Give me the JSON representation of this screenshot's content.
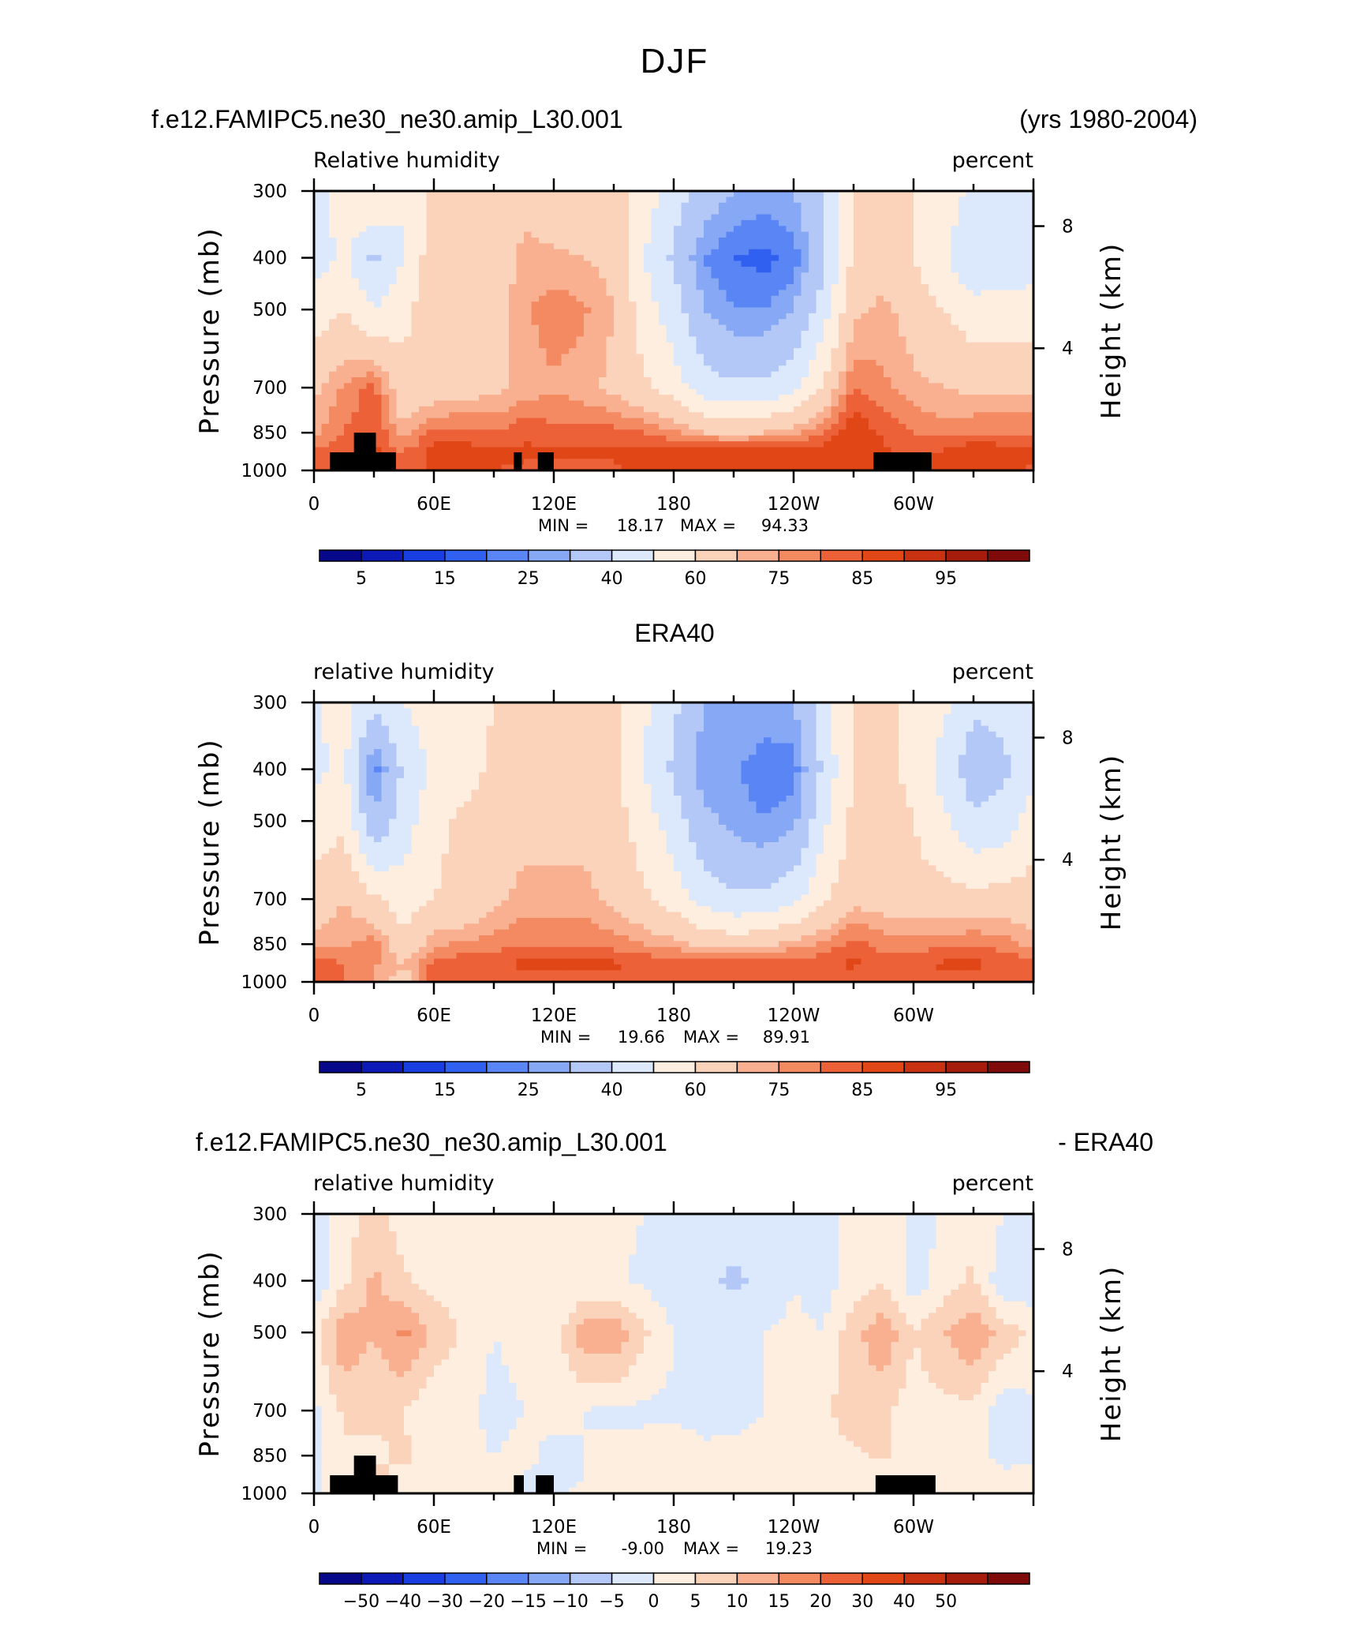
{
  "figure": {
    "title": "DJF",
    "colors": {
      "rh_scale": [
        "#08088a",
        "#0d1ab7",
        "#1a3fe0",
        "#3060f0",
        "#5a86f5",
        "#86a8f5",
        "#b4c8f8",
        "#dce8fb",
        "#fdeee0",
        "#fbd2ba",
        "#f8b090",
        "#f48a62",
        "#ec6138",
        "#e04616",
        "#c83210",
        "#a31c0c",
        "#7e0a0a"
      ],
      "diff_scale": [
        "#08088a",
        "#0d1ab7",
        "#1a3fe0",
        "#3060f0",
        "#5a86f5",
        "#86a8f5",
        "#b4c8f8",
        "#dce8fb",
        "#fdeee0",
        "#fbd2ba",
        "#f8b090",
        "#f48a62",
        "#ec6138",
        "#e04616",
        "#c83210",
        "#a31c0c",
        "#7e0a0a"
      ]
    }
  },
  "chart_data": [
    {
      "type": "heatmap",
      "title": "f.e12.FAMIPC5.ne30_ne30.amip_L30.001",
      "title_right": "(yrs 1980-2004)",
      "variable": "Relative humidity",
      "units": "percent",
      "ylabel": "Pressure (mb)",
      "ylabel_right": "Height (km)",
      "x_ticks": [
        "0",
        "60E",
        "120E",
        "180",
        "120W",
        "60W"
      ],
      "y_ticks": [
        "300",
        "400",
        "500",
        "700",
        "850",
        "1000"
      ],
      "y_right_ticks": [
        "8",
        "4"
      ],
      "stats": {
        "min_label": "MIN =",
        "min": "18.17",
        "max_label": "MAX =",
        "max": "94.33"
      },
      "colorbar_labels": [
        "5",
        "15",
        "25",
        "40",
        "60",
        "75",
        "85",
        "95"
      ],
      "colorbar_levels": [
        0,
        5,
        10,
        15,
        20,
        25,
        30,
        40,
        50,
        60,
        70,
        75,
        80,
        85,
        90,
        95,
        100
      ],
      "field": {
        "lon_points": [
          0,
          15,
          30,
          45,
          60,
          75,
          90,
          105,
          120,
          135,
          150,
          165,
          180,
          195,
          210,
          225,
          240,
          255,
          270,
          285,
          300,
          315,
          330,
          345,
          360
        ],
        "p_levels": [
          300,
          400,
          500,
          700,
          850,
          925,
          1000
        ],
        "values": [
          [
            45,
            55,
            60,
            50,
            65,
            65,
            62,
            68,
            62,
            60,
            65,
            55,
            45,
            35,
            30,
            28,
            30,
            38,
            62,
            65,
            60,
            55,
            48,
            45,
            45
          ],
          [
            45,
            52,
            38,
            50,
            66,
            65,
            64,
            72,
            72,
            70,
            68,
            50,
            38,
            25,
            20,
            18,
            22,
            38,
            62,
            66,
            60,
            52,
            40,
            42,
            45
          ],
          [
            55,
            60,
            50,
            58,
            65,
            65,
            66,
            74,
            78,
            76,
            70,
            55,
            45,
            30,
            25,
            25,
            30,
            45,
            68,
            72,
            66,
            60,
            55,
            55,
            55
          ],
          [
            68,
            76,
            82,
            62,
            64,
            66,
            68,
            72,
            74,
            72,
            68,
            62,
            55,
            45,
            42,
            42,
            48,
            62,
            80,
            76,
            72,
            70,
            68,
            68,
            68
          ],
          [
            74,
            80,
            85,
            72,
            82,
            82,
            80,
            84,
            82,
            82,
            82,
            80,
            76,
            70,
            68,
            70,
            74,
            80,
            90,
            84,
            80,
            78,
            80,
            80,
            80
          ],
          [
            82,
            84,
            86,
            80,
            88,
            88,
            86,
            86,
            86,
            86,
            86,
            88,
            88,
            90,
            90,
            90,
            90,
            88,
            90,
            86,
            84,
            86,
            90,
            88,
            86
          ],
          [
            84,
            85,
            84,
            82,
            86,
            86,
            85,
            84,
            84,
            84,
            84,
            86,
            86,
            88,
            88,
            88,
            87,
            86,
            86,
            84,
            84,
            86,
            88,
            86,
            84
          ]
        ]
      },
      "terrain": [
        {
          "lon0": 8,
          "lon1": 27,
          "p_top": 925
        },
        {
          "lon0": 20,
          "lon1": 31,
          "p_top": 850
        },
        {
          "lon0": 27,
          "lon1": 41,
          "p_top": 925
        },
        {
          "lon0": 100,
          "lon1": 104,
          "p_top": 925
        },
        {
          "lon0": 112,
          "lon1": 120,
          "p_top": 925
        },
        {
          "lon0": 280,
          "lon1": 309,
          "p_top": 925
        }
      ]
    },
    {
      "type": "heatmap",
      "title": "ERA40",
      "variable": "relative humidity",
      "units": "percent",
      "ylabel": "Pressure (mb)",
      "ylabel_right": "Height (km)",
      "x_ticks": [
        "0",
        "60E",
        "120E",
        "180",
        "120W",
        "60W"
      ],
      "y_ticks": [
        "300",
        "400",
        "500",
        "700",
        "850",
        "1000"
      ],
      "y_right_ticks": [
        "8",
        "4"
      ],
      "stats": {
        "min_label": "MIN =",
        "min": "19.66",
        "max_label": "MAX =",
        "max": "89.91"
      },
      "colorbar_labels": [
        "5",
        "15",
        "25",
        "40",
        "60",
        "75",
        "85",
        "95"
      ],
      "colorbar_levels": [
        0,
        5,
        10,
        15,
        20,
        25,
        30,
        40,
        50,
        60,
        70,
        75,
        80,
        85,
        90,
        95,
        100
      ],
      "field": {
        "lon_points": [
          0,
          15,
          30,
          45,
          60,
          75,
          90,
          105,
          120,
          135,
          150,
          165,
          180,
          195,
          210,
          225,
          240,
          255,
          270,
          285,
          300,
          315,
          330,
          345,
          360
        ],
        "p_levels": [
          300,
          400,
          500,
          700,
          850,
          925,
          1000
        ],
        "values": [
          [
            48,
            55,
            42,
            50,
            55,
            56,
            60,
            62,
            62,
            60,
            62,
            52,
            42,
            30,
            30,
            28,
            30,
            45,
            62,
            62,
            58,
            52,
            42,
            42,
            48
          ],
          [
            48,
            52,
            22,
            42,
            52,
            56,
            62,
            62,
            62,
            62,
            62,
            50,
            38,
            26,
            26,
            22,
            22,
            42,
            62,
            62,
            58,
            46,
            34,
            38,
            48
          ],
          [
            55,
            58,
            32,
            45,
            58,
            62,
            66,
            68,
            68,
            68,
            65,
            55,
            45,
            32,
            28,
            25,
            28,
            48,
            62,
            64,
            60,
            52,
            42,
            45,
            55
          ],
          [
            65,
            70,
            62,
            55,
            60,
            62,
            68,
            72,
            72,
            72,
            68,
            62,
            56,
            46,
            42,
            42,
            48,
            58,
            68,
            66,
            64,
            64,
            64,
            64,
            65
          ],
          [
            72,
            74,
            78,
            62,
            74,
            76,
            78,
            80,
            80,
            80,
            78,
            75,
            72,
            68,
            66,
            68,
            72,
            76,
            82,
            78,
            78,
            78,
            80,
            78,
            72
          ],
          [
            84,
            80,
            76,
            70,
            82,
            84,
            84,
            86,
            86,
            86,
            86,
            84,
            84,
            84,
            84,
            84,
            84,
            84,
            86,
            82,
            84,
            86,
            86,
            84,
            84
          ],
          [
            82,
            80,
            74,
            66,
            82,
            82,
            82,
            82,
            82,
            82,
            82,
            82,
            82,
            82,
            82,
            82,
            82,
            82,
            82,
            80,
            82,
            82,
            82,
            82,
            82
          ]
        ]
      },
      "terrain": []
    },
    {
      "type": "heatmap",
      "title": "f.e12.FAMIPC5.ne30_ne30.amip_L30.001",
      "title_right": "- ERA40",
      "variable": "relative humidity",
      "units": "percent",
      "ylabel": "Pressure (mb)",
      "ylabel_right": "Height (km)",
      "x_ticks": [
        "0",
        "60E",
        "120E",
        "180",
        "120W",
        "60W"
      ],
      "y_ticks": [
        "300",
        "400",
        "500",
        "700",
        "850",
        "1000"
      ],
      "y_right_ticks": [
        "8",
        "4"
      ],
      "stats": {
        "min_label": "MIN =",
        "min": "-9.00",
        "max_label": "MAX =",
        "max": "19.23"
      },
      "colorbar_labels": [
        "−50",
        "−40",
        "−30",
        "−20",
        "−15",
        "−10",
        "−5",
        "0",
        "5",
        "10",
        "15",
        "20",
        "30",
        "40",
        "50"
      ],
      "colorbar_levels": [
        -60,
        -50,
        -40,
        -30,
        -20,
        -15,
        -10,
        -5,
        0,
        5,
        10,
        15,
        20,
        30,
        40,
        50,
        60
      ],
      "field": {
        "lon_points": [
          0,
          15,
          30,
          45,
          60,
          75,
          90,
          105,
          120,
          135,
          150,
          165,
          180,
          195,
          210,
          225,
          240,
          255,
          270,
          285,
          300,
          315,
          330,
          345,
          360
        ],
        "p_levels": [
          300,
          400,
          500,
          700,
          850,
          925,
          1000
        ],
        "values": [
          [
            -3,
            2,
            8,
            2,
            3,
            2,
            0,
            2,
            0,
            0,
            1,
            0,
            -1,
            -2,
            -2,
            -1,
            0,
            -2,
            3,
            5,
            -2,
            1,
            4,
            0,
            -3
          ],
          [
            -4,
            4,
            11,
            6,
            3,
            2,
            0,
            3,
            1,
            0,
            1,
            -1,
            -3,
            -4,
            -6,
            -4,
            0,
            -2,
            2,
            5,
            -3,
            2,
            6,
            -4,
            -4
          ],
          [
            3,
            14,
            10,
            16,
            9,
            4,
            0,
            2,
            2,
            13,
            14,
            6,
            0,
            -2,
            -2,
            0,
            1,
            0,
            8,
            14,
            5,
            10,
            14,
            8,
            4
          ],
          [
            -1,
            6,
            6,
            5,
            0,
            2,
            -2,
            0,
            2,
            0,
            -1,
            -1,
            -1,
            -3,
            -2,
            0,
            0,
            4,
            8,
            6,
            2,
            3,
            4,
            -4,
            -1
          ],
          [
            -2,
            4,
            4,
            6,
            2,
            2,
            0,
            2,
            -2,
            0,
            2,
            2,
            4,
            2,
            2,
            2,
            2,
            2,
            4,
            6,
            2,
            3,
            3,
            -3,
            -2
          ],
          [
            -1,
            2,
            6,
            4,
            2,
            2,
            0,
            0,
            -3,
            0,
            2,
            2,
            2,
            2,
            2,
            2,
            2,
            2,
            2,
            2,
            2,
            2,
            2,
            2,
            2
          ],
          [
            -1,
            2,
            2,
            2,
            2,
            2,
            0,
            0,
            -2,
            2,
            2,
            2,
            2,
            2,
            2,
            2,
            2,
            2,
            2,
            2,
            2,
            2,
            2,
            2,
            2
          ]
        ]
      },
      "terrain": [
        {
          "lon0": 8,
          "lon1": 27,
          "p_top": 925
        },
        {
          "lon0": 20,
          "lon1": 31,
          "p_top": 850
        },
        {
          "lon0": 27,
          "lon1": 42,
          "p_top": 925
        },
        {
          "lon0": 100,
          "lon1": 105,
          "p_top": 925
        },
        {
          "lon0": 111,
          "lon1": 120,
          "p_top": 925
        },
        {
          "lon0": 281,
          "lon1": 311,
          "p_top": 925
        }
      ]
    }
  ]
}
